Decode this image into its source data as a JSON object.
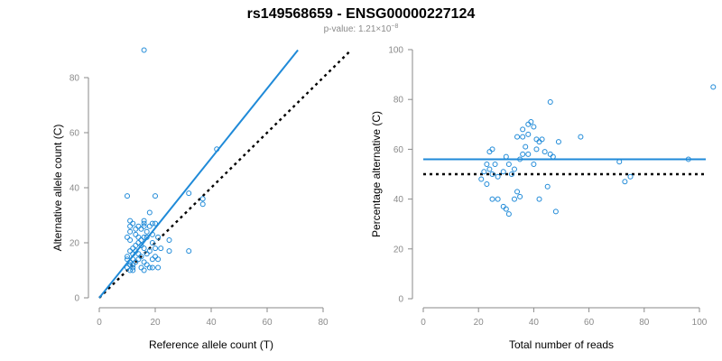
{
  "header": {
    "title": "rs149568659 - ENSG00000227124",
    "pvalue_prefix": "p-value: 1.21×10",
    "pvalue_exponent": "−8"
  },
  "colors": {
    "points": "#1f8ad8",
    "fit": "#1f8ad8",
    "reference": "#000000",
    "axis": "#8a8a8a"
  },
  "chart_data": [
    {
      "type": "scatter",
      "xlabel": "Reference allele count (T)",
      "ylabel": "Alternative allele count (C)",
      "xlim": [
        0,
        80
      ],
      "ylim": [
        0,
        80
      ],
      "xticks": [
        0,
        20,
        40,
        60,
        80
      ],
      "yticks": [
        0,
        20,
        40,
        60,
        80
      ],
      "points": [
        [
          16,
          90
        ],
        [
          42,
          54
        ],
        [
          10,
          37
        ],
        [
          20,
          37
        ],
        [
          32,
          38
        ],
        [
          37,
          36
        ],
        [
          37,
          34
        ],
        [
          18,
          31
        ],
        [
          11,
          28
        ],
        [
          16,
          28
        ],
        [
          12,
          27
        ],
        [
          16,
          27
        ],
        [
          19,
          27
        ],
        [
          20,
          27
        ],
        [
          11,
          26
        ],
        [
          14,
          26
        ],
        [
          16,
          26
        ],
        [
          18,
          26
        ],
        [
          13,
          25
        ],
        [
          15,
          25
        ],
        [
          11,
          24
        ],
        [
          17,
          24
        ],
        [
          13,
          23
        ],
        [
          19,
          23
        ],
        [
          10,
          22
        ],
        [
          14,
          22
        ],
        [
          16,
          22
        ],
        [
          17,
          22
        ],
        [
          21,
          22
        ],
        [
          11,
          21
        ],
        [
          15,
          21
        ],
        [
          25,
          21
        ],
        [
          14,
          20
        ],
        [
          19,
          20
        ],
        [
          13,
          19
        ],
        [
          15,
          19
        ],
        [
          12,
          18
        ],
        [
          16,
          18
        ],
        [
          20,
          18
        ],
        [
          22,
          18
        ],
        [
          11,
          17
        ],
        [
          13,
          17
        ],
        [
          18,
          17
        ],
        [
          25,
          17
        ],
        [
          32,
          17
        ],
        [
          12,
          16
        ],
        [
          14,
          16
        ],
        [
          17,
          16
        ],
        [
          10,
          15
        ],
        [
          15,
          15
        ],
        [
          20,
          15
        ],
        [
          10,
          14
        ],
        [
          12,
          14
        ],
        [
          14,
          14
        ],
        [
          19,
          14
        ],
        [
          21,
          14
        ],
        [
          11,
          13
        ],
        [
          13,
          13
        ],
        [
          16,
          13
        ],
        [
          11,
          12
        ],
        [
          12,
          12
        ],
        [
          17,
          12
        ],
        [
          10,
          11
        ],
        [
          12,
          11
        ],
        [
          15,
          11
        ],
        [
          18,
          11
        ],
        [
          19,
          11
        ],
        [
          21,
          11
        ],
        [
          11,
          10
        ],
        [
          12,
          10
        ],
        [
          16,
          10
        ]
      ],
      "fit_line": {
        "x": [
          0,
          71
        ],
        "y": [
          0,
          90
        ]
      },
      "reference_line": {
        "x": [
          0,
          90
        ],
        "y": [
          0,
          90
        ]
      }
    },
    {
      "type": "scatter",
      "xlabel": "Total number of reads",
      "ylabel": "Percentage alternative (C)",
      "xlim": [
        0,
        100
      ],
      "ylim": [
        0,
        100
      ],
      "xticks": [
        0,
        20,
        40,
        60,
        80,
        100
      ],
      "yticks": [
        0,
        20,
        40,
        60,
        80,
        100
      ],
      "points": [
        [
          105,
          85
        ],
        [
          46,
          79
        ],
        [
          39,
          71
        ],
        [
          38,
          70
        ],
        [
          40,
          69
        ],
        [
          36,
          68
        ],
        [
          38,
          66
        ],
        [
          57,
          65
        ],
        [
          34,
          65
        ],
        [
          36,
          65
        ],
        [
          41,
          64
        ],
        [
          42,
          63
        ],
        [
          43,
          64
        ],
        [
          49,
          63
        ],
        [
          37,
          61
        ],
        [
          25,
          60
        ],
        [
          24,
          59
        ],
        [
          41,
          60
        ],
        [
          44,
          59
        ],
        [
          30,
          57
        ],
        [
          36,
          58
        ],
        [
          38,
          58
        ],
        [
          46,
          58
        ],
        [
          47,
          57
        ],
        [
          35,
          56
        ],
        [
          96,
          56
        ],
        [
          23,
          54
        ],
        [
          26,
          54
        ],
        [
          31,
          54
        ],
        [
          40,
          54
        ],
        [
          71,
          55
        ],
        [
          24,
          52
        ],
        [
          33,
          52
        ],
        [
          22,
          51
        ],
        [
          29,
          51
        ],
        [
          25,
          50
        ],
        [
          32,
          50
        ],
        [
          27,
          49
        ],
        [
          21,
          48
        ],
        [
          23,
          46
        ],
        [
          73,
          47
        ],
        [
          75,
          49
        ],
        [
          34,
          43
        ],
        [
          45,
          45
        ],
        [
          35,
          41
        ],
        [
          27,
          40
        ],
        [
          25,
          40
        ],
        [
          33,
          40
        ],
        [
          42,
          40
        ],
        [
          29,
          37
        ],
        [
          30,
          36
        ],
        [
          31,
          34
        ],
        [
          48,
          35
        ]
      ],
      "fit_line": {
        "x": [
          0,
          105
        ],
        "y": [
          56,
          56
        ]
      },
      "reference_line": {
        "x": [
          0,
          105
        ],
        "y": [
          50,
          50
        ]
      }
    }
  ]
}
